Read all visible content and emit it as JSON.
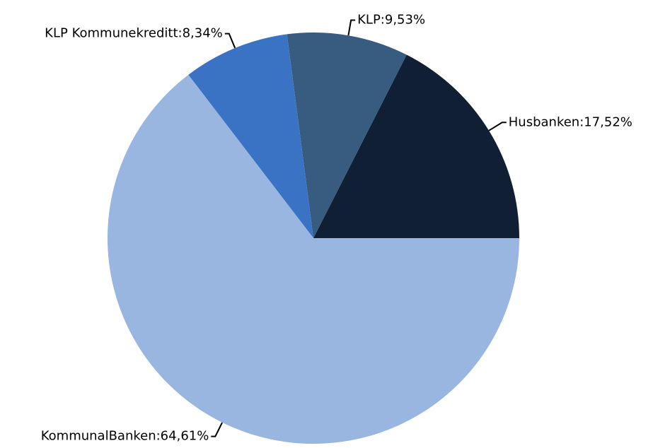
{
  "chart_data": {
    "type": "pie",
    "values": [
      17.52,
      9.53,
      8.34,
      64.61
    ],
    "value_labels": [
      "Husbanken:17,52%",
      "KLP:9,53%",
      "KLP Kommunekreditt:8,34%",
      "KommunalBanken:64,61%"
    ],
    "colors": [
      "#101f33",
      "#375c80",
      "#3a73c4",
      "#98b6e0"
    ]
  }
}
